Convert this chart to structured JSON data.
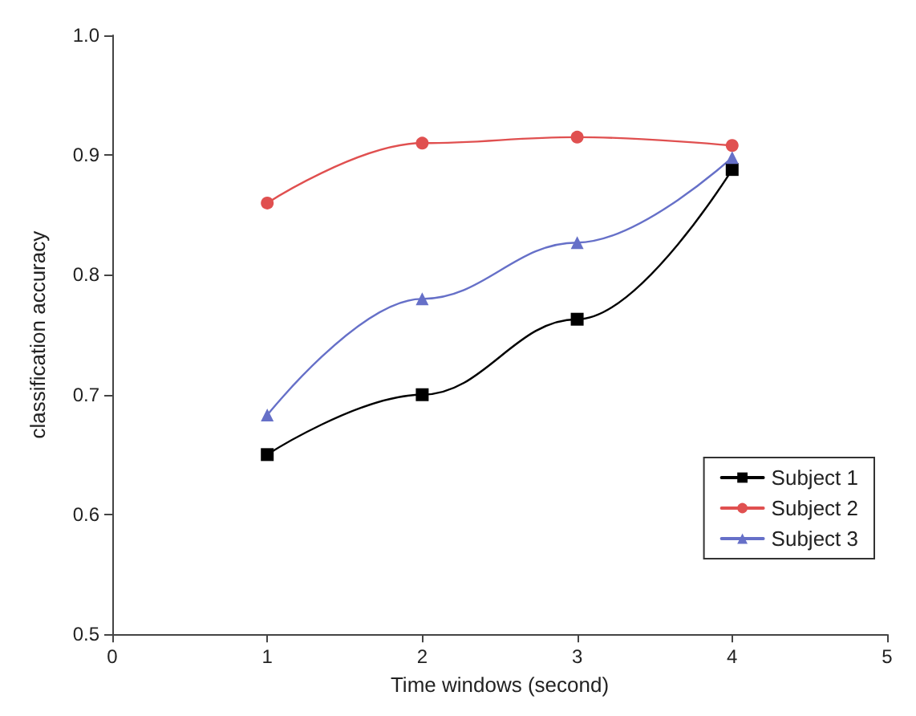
{
  "chart_data": {
    "type": "line",
    "xlabel": "Time windows (second)",
    "ylabel": "classification accuracy",
    "xlim": [
      0,
      5
    ],
    "xticks": [
      0,
      1,
      2,
      3,
      4,
      5
    ],
    "ylim": [
      0.5,
      1.0
    ],
    "yticks": [
      0.5,
      0.6,
      0.7,
      0.8,
      0.9,
      {
        "value": 1.0,
        "label": "1.0"
      }
    ],
    "grid": false,
    "legend": "bottom right",
    "line_style": "solid",
    "series": [
      {
        "name": "Subject 1",
        "color": "#000000",
        "marker": "square",
        "x": [
          1,
          2,
          3,
          4
        ],
        "values": [
          0.65,
          0.7,
          0.763,
          0.888
        ]
      },
      {
        "name": "Subject 2",
        "color": "#e05050",
        "marker": "circle",
        "x": [
          1,
          2,
          3,
          4
        ],
        "values": [
          0.86,
          0.91,
          0.915,
          0.908
        ]
      },
      {
        "name": "Subject 3",
        "color": "#6670c8",
        "marker": "triangle",
        "x": [
          1,
          2,
          3,
          4
        ],
        "values": [
          0.683,
          0.78,
          0.827,
          0.898
        ]
      }
    ]
  }
}
